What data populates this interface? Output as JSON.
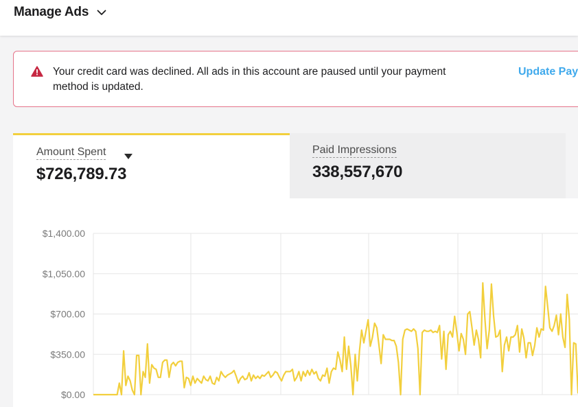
{
  "header": {
    "title": "Manage Ads",
    "menu_icon": "chevron-down-icon"
  },
  "alert": {
    "icon": "warning-icon",
    "icon_color": "#c62842",
    "border_color": "#e57389",
    "message": "Your credit card was declined. All ads in this account are paused until your payment method is updated.",
    "action_label": "Update Pay"
  },
  "metrics": {
    "accent_color": "#f2cf3d",
    "tabs": [
      {
        "label": "Amount Spent",
        "value": "$726,789.73",
        "active": true
      },
      {
        "label": "Paid Impressions",
        "value": "338,557,670",
        "active": false
      }
    ]
  },
  "chart_data": {
    "type": "line",
    "title": "",
    "xlabel": "",
    "ylabel": "",
    "y_tick_labels": [
      "$1,400.00",
      "$1,050.00",
      "$700.00",
      "$350.00",
      "$0.00"
    ],
    "ylim": [
      0,
      1400
    ],
    "grid": true,
    "line_color": "#f2cf3d",
    "series": [
      {
        "values": [
          0,
          0,
          0,
          0,
          0,
          0,
          0,
          0,
          0,
          0,
          0,
          0,
          100,
          0,
          380,
          80,
          160,
          120,
          40,
          0,
          340,
          340,
          0,
          200,
          150,
          440,
          100,
          260,
          230,
          220,
          150,
          150,
          280,
          300,
          300,
          150,
          260,
          280,
          250,
          280,
          290,
          290,
          60,
          150,
          140,
          80,
          160,
          100,
          140,
          120,
          100,
          160,
          130,
          120,
          160,
          100,
          90,
          150,
          120,
          200,
          170,
          150,
          170,
          180,
          190,
          210,
          160,
          100,
          140,
          160,
          130,
          140,
          190,
          120,
          170,
          140,
          160,
          140,
          170,
          160,
          180,
          200,
          150,
          170,
          200,
          190,
          150,
          120,
          170,
          200,
          200,
          200,
          220,
          120,
          150,
          200,
          120,
          200,
          160,
          210,
          170,
          220,
          180,
          200,
          140,
          120,
          170,
          160,
          230,
          100,
          200,
          230,
          220,
          370,
          300,
          200,
          500,
          220,
          420,
          250,
          0,
          350,
          120,
          380,
          560,
          450,
          550,
          650,
          420,
          500,
          620,
          580,
          430,
          270,
          520,
          480,
          480,
          480,
          470,
          470,
          420,
          280,
          0,
          480,
          560,
          570,
          560,
          550,
          570,
          550,
          400,
          0,
          540,
          560,
          550,
          550,
          560,
          540,
          550,
          540,
          600,
          310,
          550,
          220,
          520,
          550,
          500,
          680,
          540,
          380,
          530,
          480,
          350,
          700,
          720,
          580,
          430,
          560,
          480,
          320,
          970,
          650,
          400,
          560,
          960,
          680,
          500,
          510,
          560,
          200,
          430,
          500,
          380,
          500,
          500,
          520,
          600,
          370,
          570,
          490,
          320,
          450,
          450,
          340,
          430,
          580,
          500,
          570,
          560,
          940,
          760,
          580,
          550,
          600,
          690,
          520,
          700,
          500,
          410,
          870,
          650,
          0,
          450,
          440,
          10
        ]
      }
    ]
  }
}
